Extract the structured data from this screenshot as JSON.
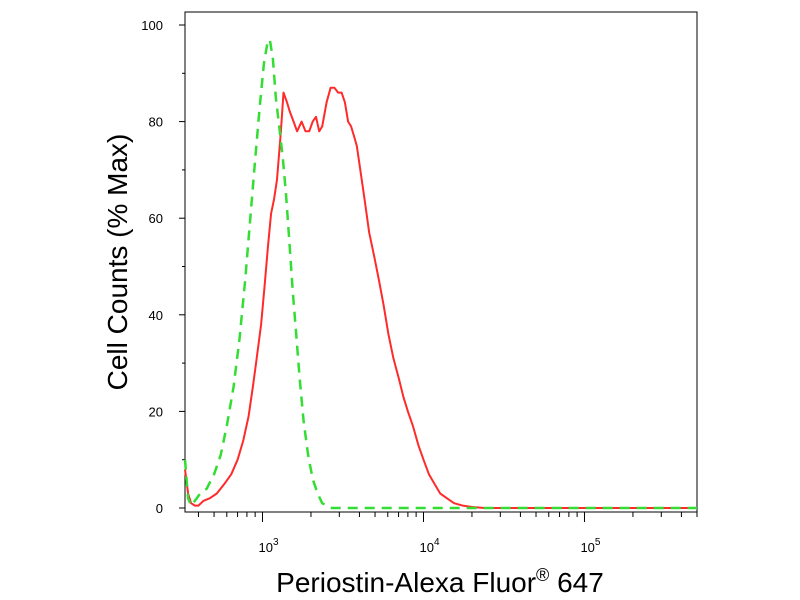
{
  "chart_data": {
    "type": "line",
    "title": "",
    "xlabel_main": "Periostin-Alexa Fluor",
    "xlabel_sup": "®",
    "xlabel_suffix": " 647",
    "ylabel": "Cell Counts (% Max)",
    "x_scale": "log",
    "xlim": [
      330,
      500000
    ],
    "ylim": [
      0,
      100
    ],
    "y_ticks": [
      0,
      20,
      40,
      60,
      80,
      100
    ],
    "x_major_ticks": [
      {
        "value": 1000,
        "base": "10",
        "exp": "3"
      },
      {
        "value": 10000,
        "base": "10",
        "exp": "4"
      },
      {
        "value": 100000,
        "base": "10",
        "exp": "5"
      }
    ],
    "grid": false,
    "series": [
      {
        "color": "#ff2a2a",
        "dash": "solid",
        "x": [
          330,
          345,
          360,
          380,
          400,
          430,
          470,
          520,
          580,
          640,
          700,
          760,
          820,
          870,
          920,
          980,
          1030,
          1080,
          1130,
          1180,
          1230,
          1300,
          1350,
          1420,
          1480,
          1560,
          1640,
          1750,
          1850,
          1950,
          2050,
          2150,
          2250,
          2350,
          2500,
          2650,
          2800,
          2950,
          3100,
          3250,
          3400,
          3550,
          3700,
          3850,
          4050,
          4300,
          4600,
          4950,
          5300,
          5650,
          6050,
          6500,
          7000,
          7500,
          8000,
          8600,
          9300,
          10000,
          10800,
          11700,
          12700,
          14000,
          15500,
          17500,
          20000,
          24000,
          30000,
          50000,
          100000,
          200000,
          500000
        ],
        "y": [
          8,
          3,
          1,
          0.5,
          0.5,
          1.5,
          2,
          3,
          5,
          7,
          10,
          14,
          19,
          25,
          31,
          38,
          46,
          54,
          61,
          64,
          68,
          78,
          86,
          84,
          82,
          80,
          78,
          80,
          78,
          78,
          80,
          81,
          78,
          79,
          84,
          87,
          87,
          86,
          86,
          84,
          80,
          79,
          77,
          75,
          70,
          64,
          57,
          52,
          47,
          42,
          36,
          31,
          27,
          23,
          20,
          17,
          13,
          10,
          7,
          5,
          3,
          2,
          1,
          0.5,
          0.2,
          0,
          0,
          0,
          0,
          0,
          0
        ]
      },
      {
        "color": "#33dd33",
        "dash": "dashed",
        "x": [
          330,
          345,
          360,
          380,
          410,
          450,
          500,
          550,
          600,
          660,
          720,
          780,
          840,
          900,
          960,
          1020,
          1070,
          1110,
          1160,
          1210,
          1280,
          1340,
          1400,
          1470,
          1540,
          1620,
          1700,
          1800,
          1920,
          2050,
          2200,
          2350,
          2500,
          2700,
          2950,
          3300,
          4000,
          6000,
          10000,
          30000,
          100000,
          500000
        ],
        "y": [
          10,
          2,
          0.5,
          1.5,
          3,
          4,
          7,
          11,
          17,
          25,
          35,
          47,
          60,
          72,
          83,
          92,
          96,
          97,
          93,
          85,
          78,
          72,
          65,
          55,
          45,
          36,
          27,
          18,
          11,
          6,
          3,
          1,
          0.5,
          0,
          0,
          0,
          0,
          0,
          0,
          0,
          0,
          0
        ]
      }
    ]
  }
}
